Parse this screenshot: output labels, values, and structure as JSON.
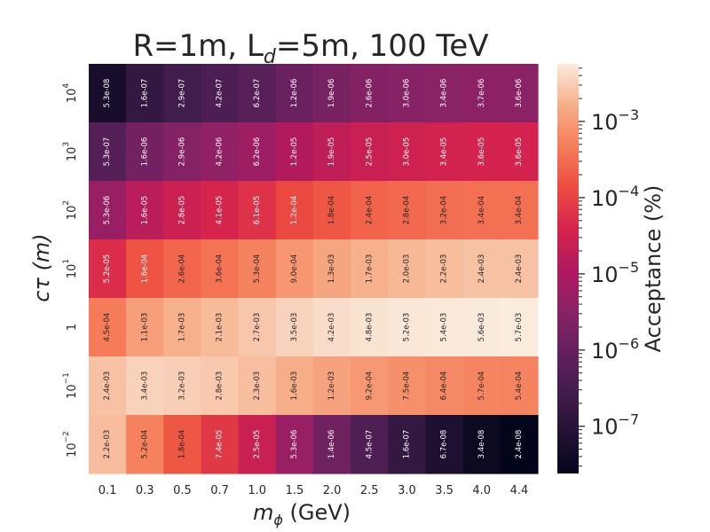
{
  "chart_data": {
    "type": "heatmap",
    "title": "R=1m, L",
    "title_sub": "d",
    "title_rest": "=5m, 100 TeV",
    "xlabel_var": "m",
    "xlabel_sub": "ϕ",
    "xlabel_unit": " (GeV)",
    "ylabel": "cτ (m)",
    "colorbar_label": "Acceptance (%)",
    "x_categories": [
      "0.1",
      "0.3",
      "0.5",
      "0.7",
      "1.0",
      "1.5",
      "2.0",
      "2.5",
      "3.0",
      "3.5",
      "4.0",
      "4.4"
    ],
    "y_categories": [
      {
        "base": "10",
        "exp": "4"
      },
      {
        "base": "10",
        "exp": "3"
      },
      {
        "base": "10",
        "exp": "2"
      },
      {
        "base": "10",
        "exp": "1"
      },
      {
        "base": "1",
        "exp": ""
      },
      {
        "base": "10",
        "exp": "−1"
      },
      {
        "base": "10",
        "exp": "−2"
      }
    ],
    "values": [
      [
        "5.3e-08",
        "1.6e-07",
        "2.9e-07",
        "4.2e-07",
        "6.2e-07",
        "1.2e-06",
        "1.9e-06",
        "2.6e-06",
        "3.0e-06",
        "3.4e-06",
        "3.7e-06",
        "3.6e-06"
      ],
      [
        "5.3e-07",
        "1.6e-06",
        "2.9e-06",
        "4.2e-06",
        "6.2e-06",
        "1.2e-05",
        "1.9e-05",
        "2.5e-05",
        "3.0e-05",
        "3.4e-05",
        "3.6e-05",
        "3.6e-05"
      ],
      [
        "5.3e-06",
        "1.6e-05",
        "2.8e-05",
        "4.1e-05",
        "6.1e-05",
        "1.2e-04",
        "1.8e-04",
        "2.4e-04",
        "2.8e-04",
        "3.2e-04",
        "3.4e-04",
        "3.4e-04"
      ],
      [
        "5.2e-05",
        "1.6e-04",
        "2.6e-04",
        "3.6e-04",
        "5.3e-04",
        "9.0e-04",
        "1.3e-03",
        "1.7e-03",
        "2.0e-03",
        "2.2e-03",
        "2.4e-03",
        "2.4e-03"
      ],
      [
        "4.5e-04",
        "1.1e-03",
        "1.7e-03",
        "2.1e-03",
        "2.7e-03",
        "3.5e-03",
        "4.2e-03",
        "4.8e-03",
        "5.2e-03",
        "5.4e-03",
        "5.6e-03",
        "5.7e-03"
      ],
      [
        "2.4e-03",
        "3.4e-03",
        "3.2e-03",
        "2.8e-03",
        "2.3e-03",
        "1.6e-03",
        "1.2e-03",
        "9.2e-04",
        "7.5e-04",
        "6.4e-04",
        "5.7e-04",
        "5.4e-04"
      ],
      [
        "2.2e-03",
        "5.2e-04",
        "1.8e-04",
        "7.4e-05",
        "2.5e-05",
        "5.3e-06",
        "1.4e-06",
        "4.5e-07",
        "1.6e-07",
        "6.7e-08",
        "3.4e-08",
        "2.4e-08"
      ]
    ],
    "color_scale": "log",
    "colormap": "rocket",
    "vmin": 2.4e-08,
    "vmax": 0.0057,
    "colorbar_ticks": [
      {
        "value": 0.001,
        "base": "10",
        "exp": "−3"
      },
      {
        "value": 0.0001,
        "base": "10",
        "exp": "−4"
      },
      {
        "value": 1e-05,
        "base": "10",
        "exp": "−5"
      },
      {
        "value": 1e-06,
        "base": "10",
        "exp": "−6"
      },
      {
        "value": 1e-07,
        "base": "10",
        "exp": "−7"
      }
    ]
  }
}
